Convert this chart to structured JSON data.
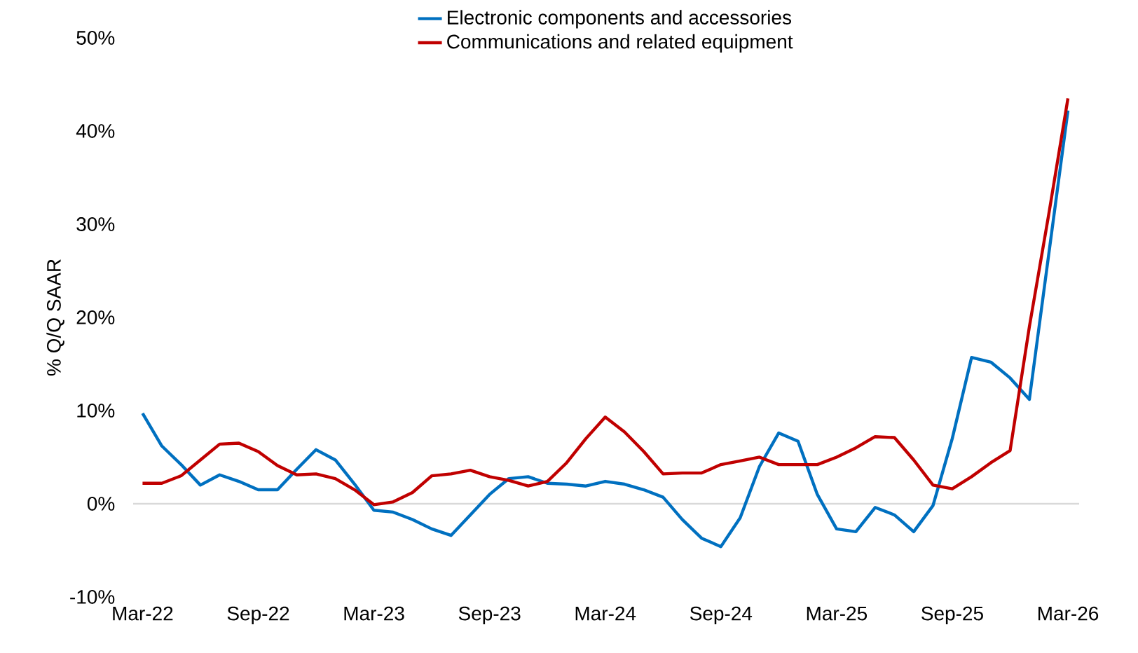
{
  "chart_data": {
    "type": "line",
    "ylabel": "% Q/Q SAAR",
    "categories": [
      "Mar-22",
      null,
      null,
      null,
      null,
      null,
      "Sep-22",
      null,
      null,
      null,
      null,
      null,
      "Mar-23",
      null,
      null,
      null,
      null,
      null,
      "Sep-23",
      null,
      null,
      null,
      null,
      null,
      "Mar-24",
      null,
      null,
      null,
      null,
      null,
      "Sep-24",
      null,
      null,
      null,
      null,
      null,
      "Mar-25",
      null,
      null,
      null,
      null,
      null,
      "Sep-25",
      null,
      null,
      null,
      null,
      null,
      "Mar-26"
    ],
    "series": [
      {
        "name": "Electronic components and accessories",
        "color": "#0070c0",
        "values": [
          9.7,
          6.2,
          4.2,
          2.0,
          3.1,
          2.4,
          1.5,
          1.5,
          3.7,
          5.8,
          4.7,
          2.1,
          -0.7,
          -0.9,
          -1.7,
          -2.7,
          -3.4,
          -1.2,
          1.0,
          2.7,
          2.9,
          2.2,
          2.1,
          1.9,
          2.4,
          2.1,
          1.5,
          0.7,
          -1.7,
          -3.7,
          -4.6,
          -1.5,
          4.0,
          7.6,
          6.7,
          1.0,
          -2.7,
          -3.0,
          -0.4,
          -1.2,
          -3.0,
          -0.2,
          7.0,
          15.7,
          15.2,
          13.5,
          11.2,
          26.7,
          42.2
        ]
      },
      {
        "name": "Communications and related equipment",
        "color": "#c00000",
        "values": [
          2.2,
          2.2,
          3.0,
          4.7,
          6.4,
          6.5,
          5.6,
          4.1,
          3.1,
          3.2,
          2.7,
          1.5,
          -0.1,
          0.2,
          1.2,
          3.0,
          3.2,
          3.6,
          2.9,
          2.5,
          1.9,
          2.4,
          4.4,
          7.0,
          9.3,
          7.7,
          5.6,
          3.2,
          3.3,
          3.3,
          4.2,
          4.6,
          5.0,
          4.2,
          4.2,
          4.2,
          5.0,
          6.0,
          7.2,
          7.1,
          4.7,
          2.0,
          1.6,
          2.9,
          4.4,
          5.7,
          19.0,
          31.0,
          43.5
        ]
      }
    ],
    "ylim": [
      -10,
      50
    ],
    "yticks": [
      {
        "value": -10,
        "label": "-10%"
      },
      {
        "value": 0,
        "label": "0%"
      },
      {
        "value": 10,
        "label": "10%"
      },
      {
        "value": 20,
        "label": "20%"
      },
      {
        "value": 30,
        "label": "30%"
      },
      {
        "value": 40,
        "label": "40%"
      },
      {
        "value": 50,
        "label": "50%"
      }
    ],
    "ref_lines": [
      {
        "axis": "y",
        "value": 0,
        "color": "#d9d9d9"
      }
    ],
    "legend": "top",
    "grid": false,
    "marker": "none",
    "line_style": "solid"
  }
}
